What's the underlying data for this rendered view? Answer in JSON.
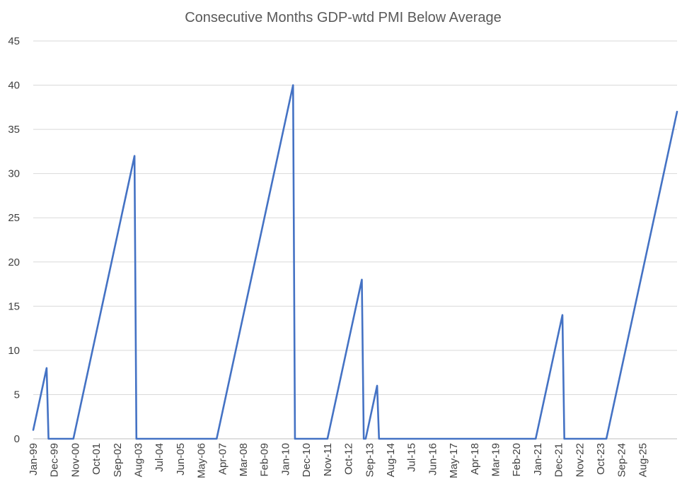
{
  "colors": {
    "series": "#4472c4",
    "background": "#ffffff"
  },
  "chart_data": {
    "type": "line",
    "title": "Consecutive Months GDP-wtd PMI Below Average",
    "xlabel": "",
    "ylabel": "",
    "ylim": [
      0,
      45
    ],
    "yticks": [
      0,
      5,
      10,
      15,
      20,
      25,
      30,
      35,
      40,
      45
    ],
    "grid": true,
    "legend": "none",
    "x_start": "Jan-99",
    "x_end": "Dec-25",
    "x_tick_labels": [
      "Jan-99",
      "Dec-99",
      "Nov-00",
      "Oct-01",
      "Sep-02",
      "Aug-03",
      "Jul-04",
      "Jun-05",
      "May-06",
      "Apr-07",
      "Mar-08",
      "Feb-09",
      "Jan-10",
      "Dec-10",
      "Nov-11",
      "Oct-12",
      "Sep-13",
      "Aug-14",
      "Jul-15",
      "Jun-16",
      "May-17",
      "Apr-18",
      "Mar-19",
      "Feb-20",
      "Jan-21",
      "Dec-21",
      "Nov-22",
      "Oct-23",
      "Sep-24",
      "Aug-25"
    ],
    "series": [
      {
        "name": "Consecutive Months Below Average",
        "values": [
          1,
          2,
          3,
          4,
          5,
          6,
          7,
          8,
          0,
          0,
          0,
          0,
          0,
          0,
          0,
          0,
          0,
          0,
          0,
          0,
          0,
          0,
          1,
          2,
          3,
          4,
          5,
          6,
          7,
          8,
          9,
          10,
          11,
          12,
          13,
          14,
          15,
          16,
          17,
          18,
          19,
          20,
          21,
          22,
          23,
          24,
          25,
          26,
          27,
          28,
          29,
          30,
          31,
          32,
          0,
          0,
          0,
          0,
          0,
          0,
          0,
          0,
          0,
          0,
          0,
          0,
          0,
          0,
          0,
          0,
          0,
          0,
          0,
          0,
          0,
          0,
          0,
          0,
          0,
          0,
          0,
          0,
          0,
          0,
          0,
          0,
          0,
          0,
          0,
          0,
          0,
          0,
          0,
          0,
          0,
          0,
          0,
          1,
          2,
          3,
          4,
          5,
          6,
          7,
          8,
          9,
          10,
          11,
          12,
          13,
          14,
          15,
          16,
          17,
          18,
          19,
          20,
          21,
          22,
          23,
          24,
          25,
          26,
          27,
          28,
          29,
          30,
          31,
          32,
          33,
          34,
          35,
          36,
          37,
          38,
          39,
          40,
          0,
          0,
          0,
          0,
          0,
          0,
          0,
          0,
          0,
          0,
          0,
          0,
          0,
          0,
          0,
          0,
          0,
          0,
          1,
          2,
          3,
          4,
          5,
          6,
          7,
          8,
          9,
          10,
          11,
          12,
          13,
          14,
          15,
          16,
          17,
          18,
          0,
          0,
          1,
          2,
          3,
          4,
          5,
          6,
          0,
          0,
          0,
          0,
          0,
          0,
          0,
          0,
          0,
          0,
          0,
          0,
          0,
          0,
          0,
          0,
          0,
          0,
          0,
          0,
          0,
          0,
          0,
          0,
          0,
          0,
          0,
          0,
          0,
          0,
          0,
          0,
          0,
          0,
          0,
          0,
          0,
          0,
          0,
          0,
          0,
          0,
          0,
          0,
          0,
          0,
          0,
          0,
          0,
          0,
          0,
          0,
          0,
          0,
          0,
          0,
          0,
          0,
          0,
          0,
          0,
          0,
          0,
          0,
          0,
          0,
          0,
          0,
          0,
          0,
          0,
          0,
          0,
          0,
          0,
          0,
          0,
          0,
          0,
          0,
          0,
          0,
          0,
          1,
          2,
          3,
          4,
          5,
          6,
          7,
          8,
          9,
          10,
          11,
          12,
          13,
          14,
          0,
          0,
          0,
          0,
          0,
          0,
          0,
          0,
          0,
          0,
          0,
          0,
          0,
          0,
          0,
          0,
          0,
          0,
          0,
          0,
          0,
          0,
          0,
          1,
          2,
          3,
          4,
          5,
          6,
          7,
          8,
          9,
          10,
          11,
          12,
          13,
          14,
          15,
          16,
          17,
          18,
          19,
          20,
          21,
          22,
          23,
          24,
          25,
          26,
          27,
          28,
          29,
          30,
          31,
          32,
          33,
          34,
          35,
          36,
          37
        ]
      }
    ]
  }
}
